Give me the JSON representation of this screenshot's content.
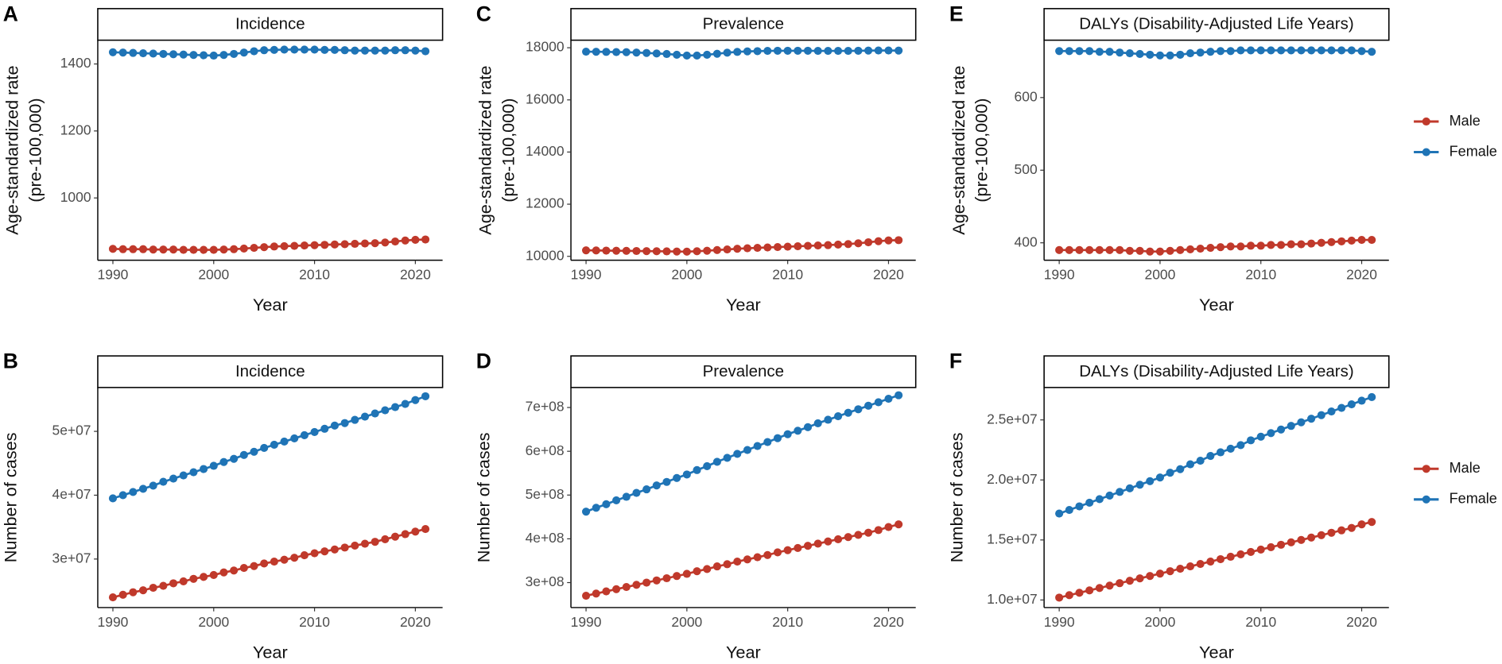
{
  "chart_data": [
    {
      "type": "line",
      "panel_label": "A",
      "title": "Incidence",
      "xlabel": "Year",
      "ylabel": [
        "Age-standardized rate",
        "(pre-100,000)"
      ],
      "x": [
        1990,
        1991,
        1992,
        1993,
        1994,
        1995,
        1996,
        1997,
        1998,
        1999,
        2000,
        2001,
        2002,
        2003,
        2004,
        2005,
        2006,
        2007,
        2008,
        2009,
        2010,
        2011,
        2012,
        2013,
        2014,
        2015,
        2016,
        2017,
        2018,
        2019,
        2020,
        2021
      ],
      "xlim": [
        1988.5,
        2022.7
      ],
      "xticks": [
        1990,
        2000,
        2010,
        2020
      ],
      "ylim": [
        814,
        1471
      ],
      "yticks": [
        1000,
        1200,
        1400
      ],
      "series": [
        {
          "name": "Male",
          "color": "#c0392b",
          "values": [
            848,
            847,
            847,
            847,
            846,
            846,
            846,
            845,
            845,
            845,
            845,
            846,
            847,
            849,
            851,
            853,
            855,
            856,
            857,
            858,
            859,
            860,
            861,
            862,
            863,
            864,
            865,
            867,
            870,
            873,
            875,
            876
          ]
        },
        {
          "name": "Female",
          "color": "#1f74b6",
          "values": [
            1435,
            1434,
            1433,
            1432,
            1431,
            1430,
            1429,
            1428,
            1427,
            1426,
            1425,
            1427,
            1430,
            1434,
            1438,
            1441,
            1442,
            1443,
            1443,
            1443,
            1443,
            1442,
            1442,
            1441,
            1440,
            1440,
            1440,
            1440,
            1441,
            1441,
            1440,
            1438
          ]
        }
      ]
    },
    {
      "type": "line",
      "panel_label": "B",
      "title": "Incidence",
      "xlabel": "Year",
      "ylabel": [
        "Number of cases"
      ],
      "x": [
        1990,
        1991,
        1992,
        1993,
        1994,
        1995,
        1996,
        1997,
        1998,
        1999,
        2000,
        2001,
        2002,
        2003,
        2004,
        2005,
        2006,
        2007,
        2008,
        2009,
        2010,
        2011,
        2012,
        2013,
        2014,
        2015,
        2016,
        2017,
        2018,
        2019,
        2020,
        2021
      ],
      "xlim": [
        1988.5,
        2022.7
      ],
      "xticks": [
        1990,
        2000,
        2010,
        2020
      ],
      "ylim": [
        22400000.0,
        56870000.0
      ],
      "yticks": [
        {
          "value": 30000000.0,
          "label": "3e+07"
        },
        {
          "value": 40000000.0,
          "label": "4e+07"
        },
        {
          "value": 50000000.0,
          "label": "5e+07"
        }
      ],
      "series": [
        {
          "name": "Male",
          "color": "#c0392b",
          "values": [
            24000000.0,
            24400000.0,
            24800000.0,
            25100000.0,
            25500000.0,
            25800000.0,
            26200000.0,
            26500000.0,
            26900000.0,
            27200000.0,
            27500000.0,
            27900000.0,
            28200000.0,
            28600000.0,
            28900000.0,
            29300000.0,
            29600000.0,
            29900000.0,
            30200000.0,
            30600000.0,
            30900000.0,
            31200000.0,
            31500000.0,
            31800000.0,
            32100000.0,
            32400000.0,
            32700000.0,
            33100000.0,
            33500000.0,
            33900000.0,
            34300000.0,
            34700000.0
          ]
        },
        {
          "name": "Female",
          "color": "#1f74b6",
          "values": [
            39500000.0,
            40000000.0,
            40500000.0,
            41000000.0,
            41500000.0,
            42100000.0,
            42600000.0,
            43100000.0,
            43600000.0,
            44100000.0,
            44600000.0,
            45200000.0,
            45700000.0,
            46300000.0,
            46800000.0,
            47400000.0,
            47900000.0,
            48400000.0,
            48900000.0,
            49400000.0,
            49900000.0,
            50400000.0,
            50900000.0,
            51300000.0,
            51800000.0,
            52300000.0,
            52800000.0,
            53300000.0,
            53800000.0,
            54300000.0,
            54900000.0,
            55500000.0
          ]
        }
      ]
    },
    {
      "type": "line",
      "panel_label": "C",
      "title": "Prevalence",
      "xlabel": "Year",
      "ylabel": [
        "Age-standardized rate",
        "(pre-100,000)"
      ],
      "x": [
        1990,
        1991,
        1992,
        1993,
        1994,
        1995,
        1996,
        1997,
        1998,
        1999,
        2000,
        2001,
        2002,
        2003,
        2004,
        2005,
        2006,
        2007,
        2008,
        2009,
        2010,
        2011,
        2012,
        2013,
        2014,
        2015,
        2016,
        2017,
        2018,
        2019,
        2020,
        2021
      ],
      "xlim": [
        1988.5,
        2022.7
      ],
      "xticks": [
        1990,
        2000,
        2010,
        2020
      ],
      "ylim": [
        9850,
        18290
      ],
      "yticks": [
        10000,
        12000,
        14000,
        16000,
        18000
      ],
      "series": [
        {
          "name": "Male",
          "color": "#c0392b",
          "values": [
            10230,
            10225,
            10220,
            10215,
            10210,
            10205,
            10200,
            10195,
            10190,
            10185,
            10180,
            10195,
            10215,
            10240,
            10265,
            10290,
            10310,
            10325,
            10340,
            10355,
            10370,
            10385,
            10400,
            10415,
            10430,
            10450,
            10470,
            10500,
            10540,
            10580,
            10610,
            10620
          ]
        },
        {
          "name": "Female",
          "color": "#1f74b6",
          "values": [
            17850,
            17845,
            17840,
            17835,
            17830,
            17815,
            17800,
            17780,
            17760,
            17730,
            17700,
            17700,
            17730,
            17770,
            17810,
            17840,
            17860,
            17870,
            17880,
            17885,
            17885,
            17885,
            17885,
            17880,
            17880,
            17880,
            17880,
            17885,
            17890,
            17895,
            17895,
            17890
          ]
        }
      ]
    },
    {
      "type": "line",
      "panel_label": "D",
      "title": "Prevalence",
      "xlabel": "Year",
      "ylabel": [
        "Number of cases"
      ],
      "x": [
        1990,
        1991,
        1992,
        1993,
        1994,
        1995,
        1996,
        1997,
        1998,
        1999,
        2000,
        2001,
        2002,
        2003,
        2004,
        2005,
        2006,
        2007,
        2008,
        2009,
        2010,
        2011,
        2012,
        2013,
        2014,
        2015,
        2016,
        2017,
        2018,
        2019,
        2020,
        2021
      ],
      "xlim": [
        1988.5,
        2022.7
      ],
      "xticks": [
        1990,
        2000,
        2010,
        2020
      ],
      "ylim": [
        243000000.0,
        745700000.0
      ],
      "yticks": [
        {
          "value": 300000000.0,
          "label": "3e+08"
        },
        {
          "value": 400000000.0,
          "label": "4e+08"
        },
        {
          "value": 500000000.0,
          "label": "5e+08"
        },
        {
          "value": 600000000.0,
          "label": "6e+08"
        },
        {
          "value": 700000000.0,
          "label": "7e+08"
        }
      ],
      "series": [
        {
          "name": "Male",
          "color": "#c0392b",
          "values": [
            270000000.0,
            275000000.0,
            280000000.0,
            285000000.0,
            290000000.0,
            295000000.0,
            300000000.0,
            305000000.0,
            310000000.0,
            315000000.0,
            320000000.0,
            326000000.0,
            331000000.0,
            337000000.0,
            342000000.0,
            348000000.0,
            353000000.0,
            358000000.0,
            363000000.0,
            369000000.0,
            374000000.0,
            379000000.0,
            384000000.0,
            389000000.0,
            394000000.0,
            399000000.0,
            404000000.0,
            409000000.0,
            414000000.0,
            420000000.0,
            427000000.0,
            433000000.0
          ]
        },
        {
          "name": "Female",
          "color": "#1f74b6",
          "values": [
            462000000.0,
            471000000.0,
            479000000.0,
            488000000.0,
            496000000.0,
            505000000.0,
            513000000.0,
            522000000.0,
            530000000.0,
            539000000.0,
            547000000.0,
            557000000.0,
            566000000.0,
            576000000.0,
            585000000.0,
            594000000.0,
            603000000.0,
            612000000.0,
            621000000.0,
            630000000.0,
            639000000.0,
            647000000.0,
            655000000.0,
            664000000.0,
            672000000.0,
            680000000.0,
            688000000.0,
            696000000.0,
            704000000.0,
            712000000.0,
            720000000.0,
            728000000.0
          ]
        }
      ]
    },
    {
      "type": "line",
      "panel_label": "E",
      "title": "DALYs (Disability-Adjusted Life Years)",
      "xlabel": "Year",
      "ylabel": [
        "Age-standardized rate",
        "(pre-100,000)"
      ],
      "x": [
        1990,
        1991,
        1992,
        1993,
        1994,
        1995,
        1996,
        1997,
        1998,
        1999,
        2000,
        2001,
        2002,
        2003,
        2004,
        2005,
        2006,
        2007,
        2008,
        2009,
        2010,
        2011,
        2012,
        2013,
        2014,
        2015,
        2016,
        2017,
        2018,
        2019,
        2020,
        2021
      ],
      "xlim": [
        1988.5,
        2022.7
      ],
      "xticks": [
        1990,
        2000,
        2010,
        2020
      ],
      "ylim": [
        376,
        679
      ],
      "yticks": [
        400,
        500,
        600
      ],
      "legend": "right",
      "series": [
        {
          "name": "Male",
          "color": "#c0392b",
          "values": [
            390,
            390,
            390,
            390,
            390,
            390,
            390,
            389,
            389,
            388,
            388,
            389,
            390,
            391,
            392,
            393,
            394,
            395,
            395,
            396,
            396,
            397,
            397,
            398,
            398,
            399,
            400,
            401,
            402,
            403,
            404,
            404
          ]
        },
        {
          "name": "Female",
          "color": "#1f74b6",
          "values": [
            664,
            664,
            664,
            664,
            663,
            663,
            662,
            661,
            660,
            659,
            658,
            658,
            659,
            661,
            662,
            663,
            664,
            664,
            665,
            665,
            665,
            665,
            665,
            665,
            665,
            665,
            665,
            665,
            665,
            665,
            664,
            663
          ]
        }
      ]
    },
    {
      "type": "line",
      "panel_label": "F",
      "title": "DALYs (Disability-Adjusted Life Years)",
      "xlabel": "Year",
      "ylabel": [
        "Number of cases"
      ],
      "x": [
        1990,
        1991,
        1992,
        1993,
        1994,
        1995,
        1996,
        1997,
        1998,
        1999,
        2000,
        2001,
        2002,
        2003,
        2004,
        2005,
        2006,
        2007,
        2008,
        2009,
        2010,
        2011,
        2012,
        2013,
        2014,
        2015,
        2016,
        2017,
        2018,
        2019,
        2020,
        2021
      ],
      "xlim": [
        1988.5,
        2022.7
      ],
      "xticks": [
        1990,
        2000,
        2010,
        2020
      ],
      "ylim": [
        9370000.0,
        27700000.0
      ],
      "legend": "right",
      "yticks": [
        {
          "value": 10000000.0,
          "label": "1.0e+07"
        },
        {
          "value": 15000000.0,
          "label": "1.5e+07"
        },
        {
          "value": 20000000.0,
          "label": "2.0e+07"
        },
        {
          "value": 25000000.0,
          "label": "2.5e+07"
        }
      ],
      "series": [
        {
          "name": "Male",
          "color": "#c0392b",
          "values": [
            10200000.0,
            10400000.0,
            10600000.0,
            10800000.0,
            11000000.0,
            11200000.0,
            11400000.0,
            11600000.0,
            11800000.0,
            12000000.0,
            12200000.0,
            12400000.0,
            12600000.0,
            12800000.0,
            13000000.0,
            13200000.0,
            13400000.0,
            13600000.0,
            13800000.0,
            14000000.0,
            14200000.0,
            14400000.0,
            14600000.0,
            14800000.0,
            15000000.0,
            15200000.0,
            15400000.0,
            15600000.0,
            15800000.0,
            16000000.0,
            16300000.0,
            16500000.0
          ]
        },
        {
          "name": "Female",
          "color": "#1f74b6",
          "values": [
            17200000.0,
            17500000.0,
            17800000.0,
            18100000.0,
            18400000.0,
            18700000.0,
            19000000.0,
            19300000.0,
            19600000.0,
            19900000.0,
            20200000.0,
            20600000.0,
            20900000.0,
            21300000.0,
            21600000.0,
            22000000.0,
            22300000.0,
            22600000.0,
            22900000.0,
            23300000.0,
            23600000.0,
            23900000.0,
            24200000.0,
            24500000.0,
            24800000.0,
            25100000.0,
            25400000.0,
            25700000.0,
            26000000.0,
            26300000.0,
            26600000.0,
            26900000.0
          ]
        }
      ]
    }
  ]
}
